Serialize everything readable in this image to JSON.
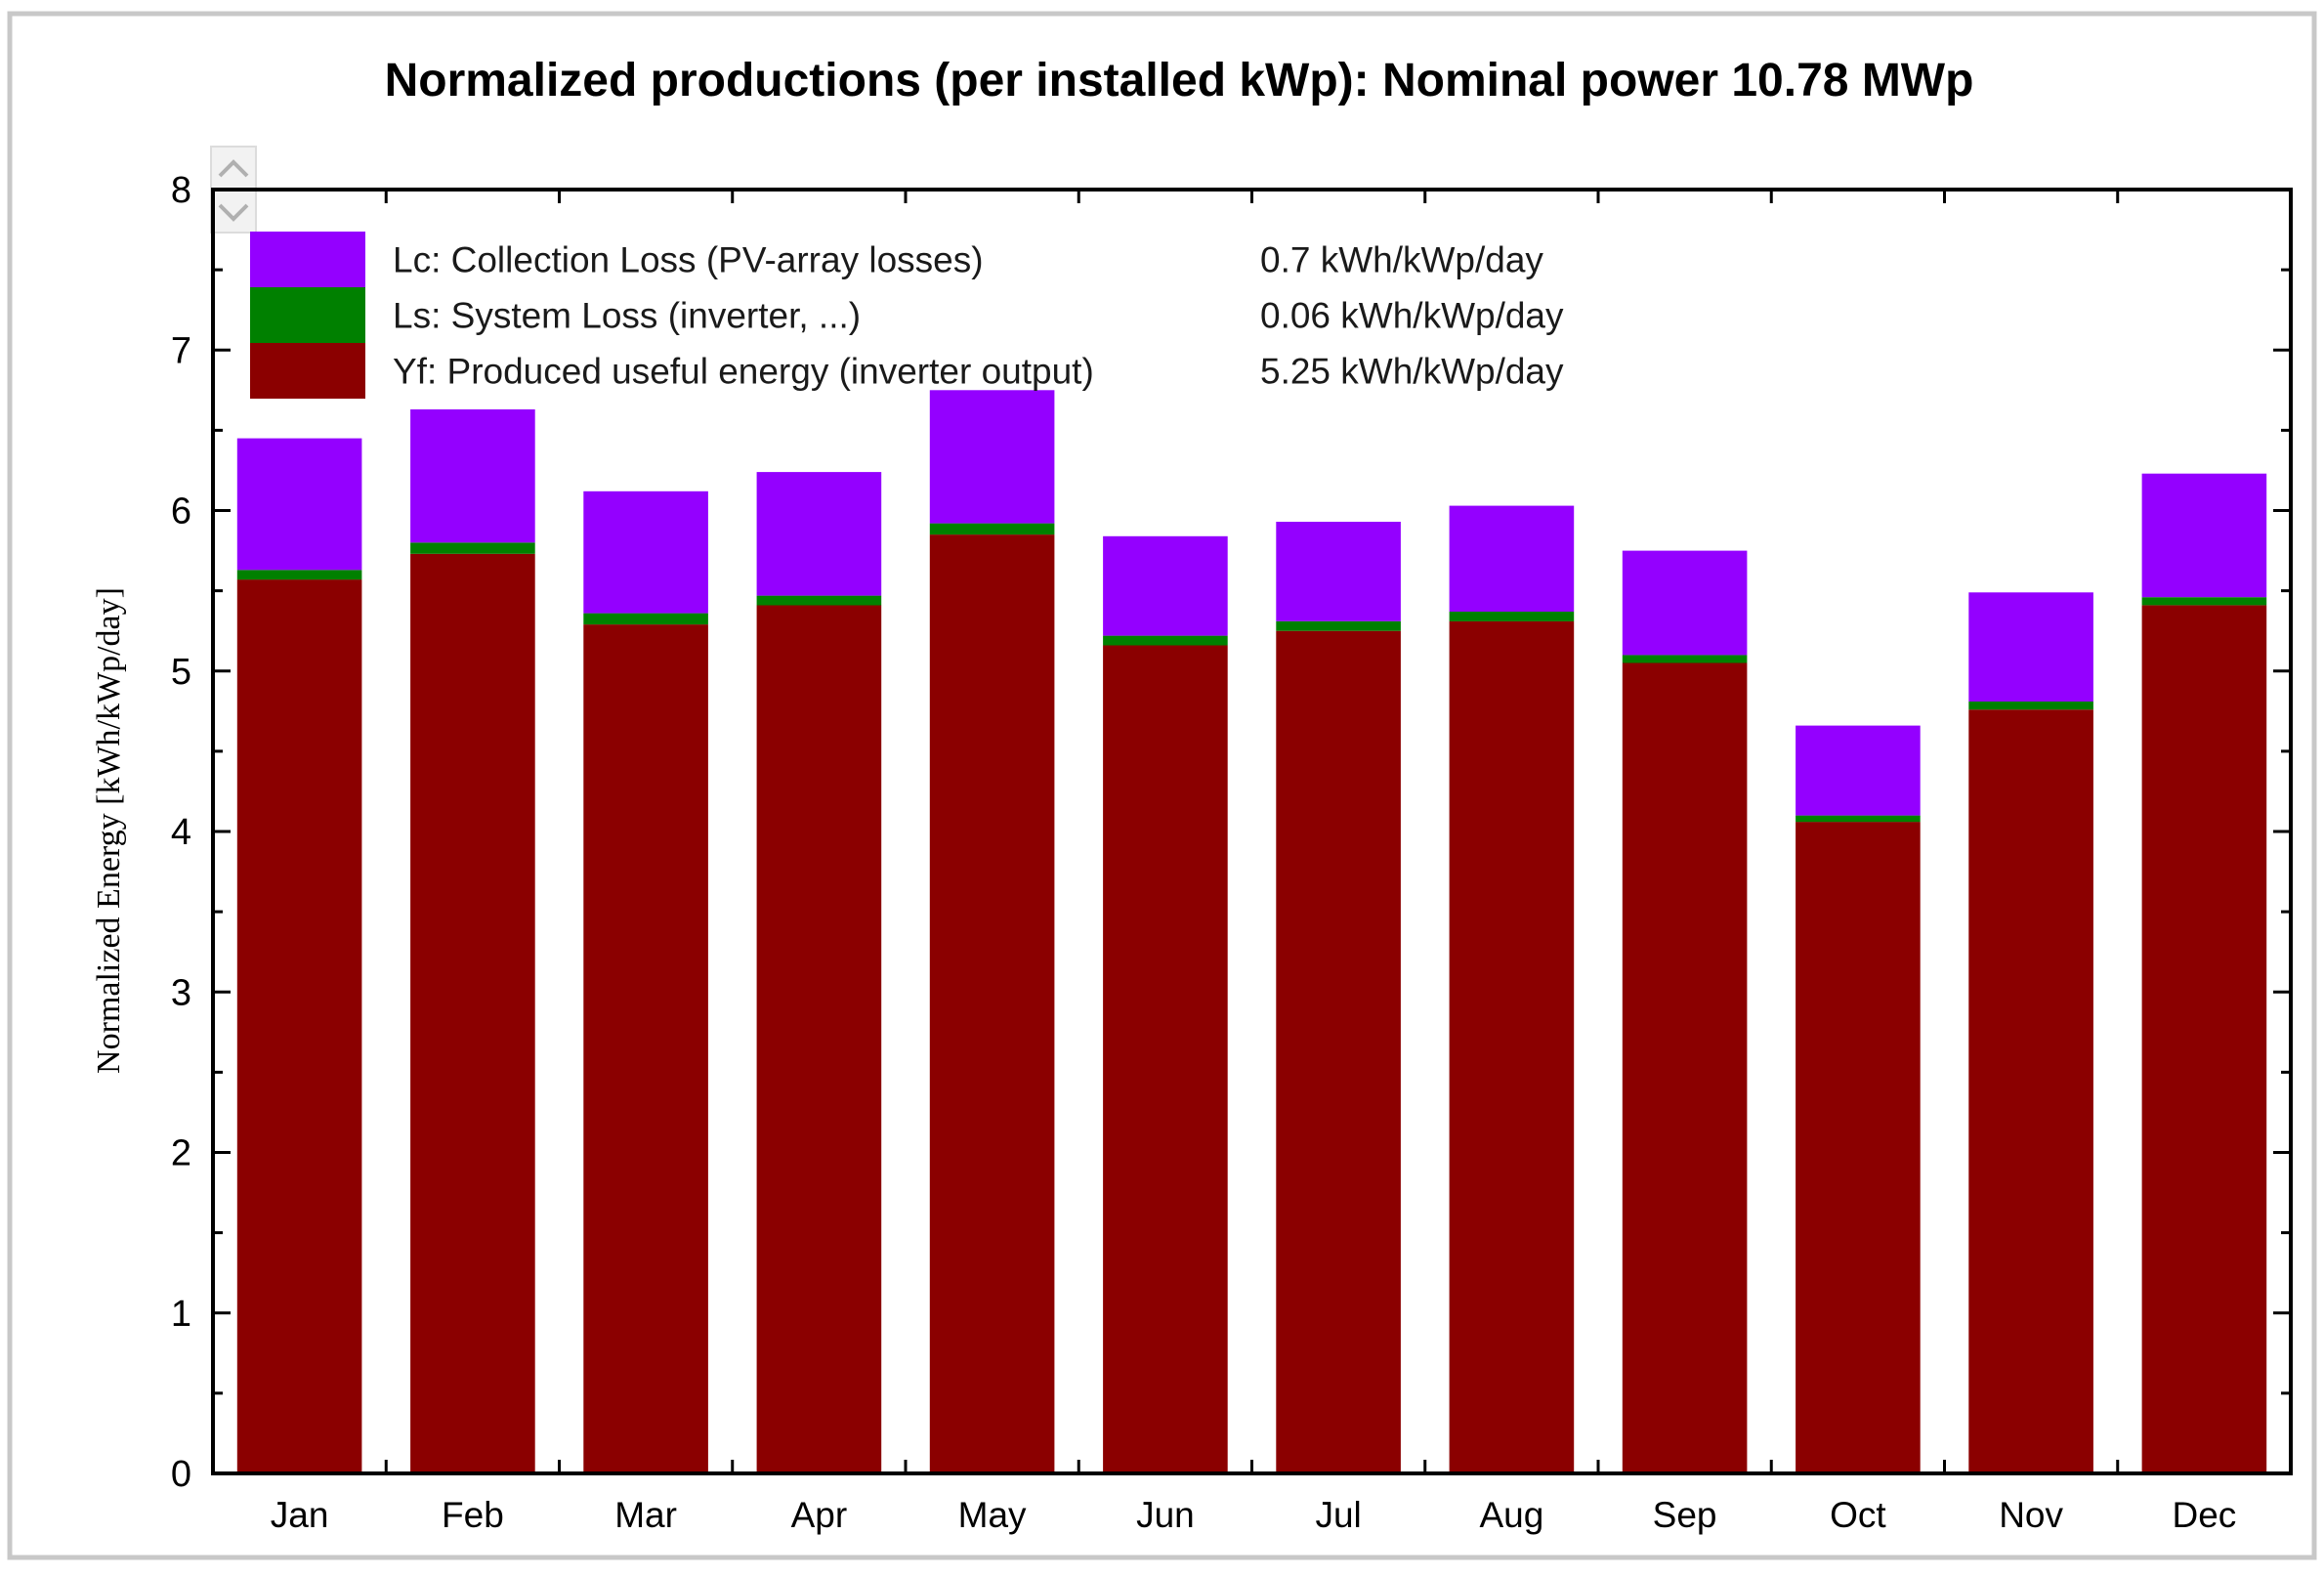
{
  "chart_data": {
    "type": "bar",
    "stacked": true,
    "title": "Normalized productions (per installed kWp):  Nominal power 10.78 MWp",
    "xlabel": "",
    "ylabel": "Normalized Energy  [kWh/kWp/day]",
    "ylim": [
      0,
      8
    ],
    "yticks": [
      "0",
      "1",
      "2",
      "3",
      "4",
      "5",
      "6",
      "7",
      "8"
    ],
    "categories": [
      "Jan",
      "Feb",
      "Mar",
      "Apr",
      "May",
      "Jun",
      "Jul",
      "Aug",
      "Sep",
      "Oct",
      "Nov",
      "Dec"
    ],
    "series": [
      {
        "key": "yf",
        "name": "Yf: Produced useful energy  (inverter output)",
        "summary": "5.25 kWh/kWp/day",
        "color": "#8b0000",
        "values": [
          5.57,
          5.73,
          5.29,
          5.41,
          5.85,
          5.16,
          5.25,
          5.31,
          5.05,
          4.06,
          4.76,
          5.41
        ]
      },
      {
        "key": "ls",
        "name": "Ls: System Loss  (inverter, ...)",
        "summary": "0.06 kWh/kWp/day",
        "color": "#008000",
        "values": [
          0.06,
          0.07,
          0.07,
          0.06,
          0.07,
          0.06,
          0.06,
          0.06,
          0.05,
          0.04,
          0.05,
          0.05
        ]
      },
      {
        "key": "lc",
        "name": "Lc: Collection Loss (PV-array losses)",
        "summary": "0.7 kWh/kWp/day",
        "color": "#9400ff",
        "values": [
          0.82,
          0.83,
          0.76,
          0.77,
          0.83,
          0.62,
          0.62,
          0.66,
          0.65,
          0.56,
          0.68,
          0.77
        ]
      }
    ],
    "legend": {
      "placement": "top-left",
      "order": [
        "lc",
        "ls",
        "yf"
      ]
    },
    "grid": false
  },
  "scroll_control": {
    "up_icon": "chevron-up-icon",
    "down_icon": "chevron-down-icon"
  }
}
